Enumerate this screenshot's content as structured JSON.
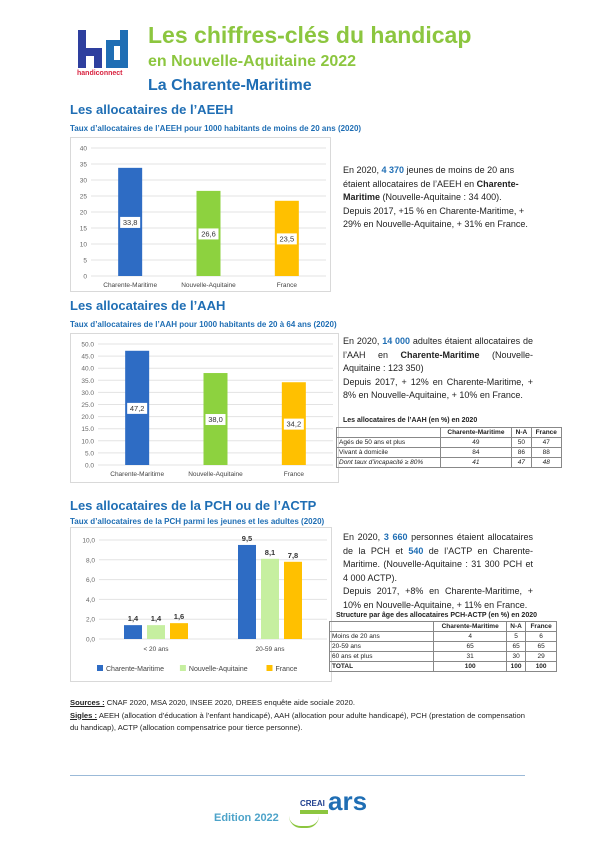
{
  "header": {
    "logo_text": "handiconnect",
    "title": "Les chiffres-clés du handicap",
    "subtitle": "en Nouvelle-Aquitaine 2022",
    "territory": "La Charente-Maritime"
  },
  "colors": {
    "charente": "#2e6cc4",
    "aquitaine": "#8dd23f",
    "france": "#ffc000",
    "heading": "#1f6eb4",
    "accent": "#8cc63f"
  },
  "aeeh": {
    "title": "Les allocataires de l’AEEH",
    "subtitle": "Taux d’allocataires de l’AEEH pour 1000 habitants de moins de 20 ans (2020)",
    "text": {
      "t1": "En 2020, ",
      "n1": "4 370",
      "t2": " jeunes de moins de 20 ans étaient allocataires de l’AEEH en ",
      "place": "Charente-Maritime",
      "t3": " (Nouvelle-Aquitaine : 34 400).",
      "t4": "Depuis 2017, +15 % en Charente-Maritime, + 29% en Nouvelle-Aquitaine, + 31% en France."
    }
  },
  "aah": {
    "title": "Les allocataires de l’AAH",
    "subtitle": "Taux d’allocataires de l’AAH pour 1000 habitants de 20 à 64 ans (2020)",
    "text": {
      "t1": "En 2020, ",
      "n1": "14 000",
      "t2": " adultes étaient allocataires de l’AAH en ",
      "place": "Charente-Maritime",
      "t3": " (Nouvelle-Aquitaine : 123 350)",
      "t4": "Depuis 2017, + 12% en Charente-Maritime, + 8% en Nouvelle-Aquitaine, + 10% en France."
    },
    "table": {
      "title": "Les allocataires de l’AAH (en %) en 2020",
      "headers": [
        "",
        "Charente-Maritime",
        "N-A",
        "France"
      ],
      "rows": [
        [
          "Agés de 50 ans et plus",
          "49",
          "50",
          "47"
        ],
        [
          "Vivant à domicile",
          "84",
          "86",
          "88"
        ],
        [
          "Dont taux d’incapacité ≥ 80%",
          "41",
          "47",
          "48"
        ]
      ]
    }
  },
  "pch": {
    "title": "Les allocataires de la PCH ou de l’ACTP",
    "subtitle": "Taux d’allocataires de la PCH parmi les jeunes et les adultes (2020)",
    "text": {
      "t1": "En 2020, ",
      "n1": "3 660",
      "t2": " personnes étaient allocataires de la PCH et ",
      "n2": "540",
      "t3": " de l’ACTP en Charente-Maritime. (Nouvelle-Aquitaine : 31 300 PCH et 4 000 ACTP).",
      "t4": "Depuis 2017, +8% en Charente-Maritime, + 10% en Nouvelle-Aquitaine, + 11% en France."
    },
    "table": {
      "title": "Structure par âge des allocataires PCH-ACTP (en %) en 2020",
      "headers": [
        "",
        "Charente-Maritime",
        "N-A",
        "France"
      ],
      "rows": [
        [
          "Moins de 20 ans",
          "4",
          "5",
          "6"
        ],
        [
          "20-59 ans",
          "65",
          "65",
          "65"
        ],
        [
          "60 ans et plus",
          "31",
          "30",
          "29"
        ],
        [
          "TOTAL",
          "100",
          "100",
          "100"
        ]
      ]
    }
  },
  "chart_data": [
    {
      "type": "bar",
      "categories": [
        "Charente-Maritime",
        "Nouvelle-Aquitaine",
        "France"
      ],
      "values": [
        33.8,
        26.6,
        23.5
      ],
      "value_labels": [
        "33,8",
        "26,6",
        "23,5"
      ],
      "ylim": [
        0,
        40
      ],
      "yticks": [
        "0",
        "5",
        "10",
        "15",
        "20",
        "25",
        "30",
        "35",
        "40"
      ],
      "grid": true
    },
    {
      "type": "bar",
      "categories": [
        "Charente-Maritime",
        "Nouvelle-Aquitaine",
        "France"
      ],
      "values": [
        47.2,
        38.0,
        34.2
      ],
      "value_labels": [
        "47,2",
        "38,0",
        "34,2"
      ],
      "ylim": [
        0,
        50
      ],
      "yticks": [
        "0.0",
        "5.0",
        "10.0",
        "15.0",
        "20.0",
        "25.0",
        "30.0",
        "35.0",
        "40.0",
        "45.0",
        "50.0"
      ],
      "grid": true
    },
    {
      "type": "bar",
      "categories": [
        "< 20 ans",
        "20-59 ans"
      ],
      "series": [
        {
          "name": "Charente-Maritime",
          "values": [
            1.4,
            9.5
          ],
          "labels": [
            "1,4",
            "9,5"
          ]
        },
        {
          "name": "Nouvelle-Aquitaine",
          "values": [
            1.4,
            8.1
          ],
          "labels": [
            "1,4",
            "8,1"
          ]
        },
        {
          "name": "France",
          "values": [
            1.6,
            7.8
          ],
          "labels": [
            "1,6",
            "7,8"
          ]
        }
      ],
      "ylim": [
        0,
        10
      ],
      "yticks": [
        "0,0",
        "2,0",
        "4,0",
        "6,0",
        "8,0",
        "10,0"
      ],
      "legend": "bottom",
      "grid": true
    }
  ],
  "footer": {
    "sources_label": "Sources :",
    "sources_text": " CNAF 2020, MSA 2020, INSEE 2020, DREES enquête aide sociale 2020.",
    "sigles_label": "Sigles :",
    "sigles_text": " AEEH (allocation d’éducation à l’enfant handicapé), AAH (allocation pour adulte handicapé), PCH (prestation de compensation du handicap), ACTP (allocation compensatrice pour tierce personne).",
    "edition": "Edition 2022",
    "partner_creai": "CREAI",
    "partner_ars": "ars"
  }
}
